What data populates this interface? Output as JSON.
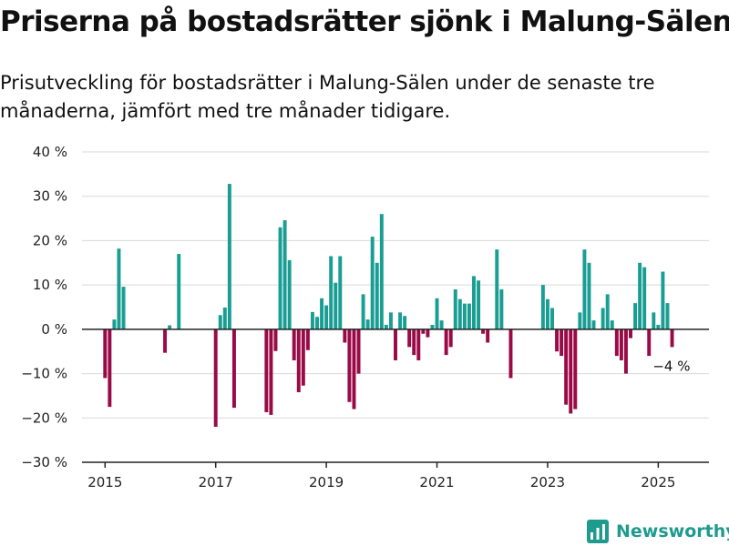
{
  "title": "Priserna på bostadsrätter sjönk i Malung-Sälen",
  "subtitle": "Prisutveckling för bostadsrätter i Malung-Sälen under de senaste tre månaderna, jämfört med tre månader tidigare.",
  "brand": "Newsworthy",
  "colors": {
    "positive": "#1a9e93",
    "negative": "#990a47",
    "grid": "#d9d9d9",
    "axis": "#222222",
    "brand": "#1f9a8e"
  },
  "chart_data": {
    "type": "bar",
    "x_unit": "month",
    "ylim": [
      -30,
      40
    ],
    "yticks": [
      -30,
      -20,
      -10,
      0,
      10,
      20,
      30,
      40
    ],
    "ytick_labels": [
      "−30 %",
      "−20 %",
      "−10 %",
      "0 %",
      "10 %",
      "20 %",
      "30 %",
      "40 %"
    ],
    "xticks": [
      "2015",
      "2017",
      "2019",
      "2021",
      "2023",
      "2025"
    ],
    "xlim": [
      "2014-08",
      "2025-12"
    ],
    "grid": true,
    "annotation": {
      "text": "−4 %",
      "month": "2025-04"
    },
    "series": [
      {
        "values": [
          [
            "2015-01",
            -11
          ],
          [
            "2015-02",
            -17.5
          ],
          [
            "2015-03",
            2.2
          ],
          [
            "2015-04",
            18.2
          ],
          [
            "2015-05",
            9.6
          ],
          [
            "2016-02",
            -5.3
          ],
          [
            "2016-03",
            0.9
          ],
          [
            "2016-05",
            17
          ],
          [
            "2017-01",
            -22
          ],
          [
            "2017-02",
            3.2
          ],
          [
            "2017-03",
            4.9
          ],
          [
            "2017-04",
            32.8
          ],
          [
            "2017-05",
            -17.7
          ],
          [
            "2017-12",
            -18.7
          ],
          [
            "2018-01",
            -19.3
          ],
          [
            "2018-02",
            -4.9
          ],
          [
            "2018-03",
            23
          ],
          [
            "2018-04",
            24.6
          ],
          [
            "2018-05",
            15.6
          ],
          [
            "2018-06",
            -7
          ],
          [
            "2018-07",
            -14.2
          ],
          [
            "2018-08",
            -12.7
          ],
          [
            "2018-09",
            -4.7
          ],
          [
            "2018-10",
            3.9
          ],
          [
            "2018-11",
            2.8
          ],
          [
            "2018-12",
            7
          ],
          [
            "2019-01",
            5.4
          ],
          [
            "2019-02",
            16.5
          ],
          [
            "2019-03",
            10.5
          ],
          [
            "2019-04",
            16.5
          ],
          [
            "2019-05",
            -3
          ],
          [
            "2019-06",
            -16.4
          ],
          [
            "2019-07",
            -18
          ],
          [
            "2019-08",
            -10
          ],
          [
            "2019-09",
            7.9
          ],
          [
            "2019-10",
            2.2
          ],
          [
            "2019-11",
            20.9
          ],
          [
            "2019-12",
            15
          ],
          [
            "2020-01",
            26
          ],
          [
            "2020-02",
            1
          ],
          [
            "2020-03",
            3.8
          ],
          [
            "2020-04",
            -7
          ],
          [
            "2020-05",
            3.8
          ],
          [
            "2020-06",
            3
          ],
          [
            "2020-07",
            -4
          ],
          [
            "2020-08",
            -5.8
          ],
          [
            "2020-09",
            -7
          ],
          [
            "2020-10",
            -1
          ],
          [
            "2020-11",
            -1.8
          ],
          [
            "2020-12",
            1
          ],
          [
            "2021-01",
            7
          ],
          [
            "2021-02",
            2
          ],
          [
            "2021-03",
            -5.8
          ],
          [
            "2021-04",
            -4
          ],
          [
            "2021-05",
            9
          ],
          [
            "2021-06",
            6.8
          ],
          [
            "2021-07",
            5.8
          ],
          [
            "2021-08",
            5.8
          ],
          [
            "2021-09",
            12
          ],
          [
            "2021-10",
            11
          ],
          [
            "2021-11",
            -1
          ],
          [
            "2021-12",
            -3
          ],
          [
            "2022-02",
            18
          ],
          [
            "2022-03",
            9
          ],
          [
            "2022-05",
            -11
          ],
          [
            "2022-12",
            10
          ],
          [
            "2023-01",
            6.8
          ],
          [
            "2023-02",
            4.8
          ],
          [
            "2023-03",
            -5
          ],
          [
            "2023-04",
            -6
          ],
          [
            "2023-05",
            -17
          ],
          [
            "2023-06",
            -19
          ],
          [
            "2023-07",
            -18
          ],
          [
            "2023-08",
            3.8
          ],
          [
            "2023-09",
            18
          ],
          [
            "2023-10",
            15
          ],
          [
            "2023-11",
            2
          ],
          [
            "2024-01",
            4.8
          ],
          [
            "2024-02",
            7.9
          ],
          [
            "2024-03",
            2
          ],
          [
            "2024-04",
            -6
          ],
          [
            "2024-05",
            -7
          ],
          [
            "2024-06",
            -10
          ],
          [
            "2024-07",
            -2
          ],
          [
            "2024-08",
            5.9
          ],
          [
            "2024-09",
            15
          ],
          [
            "2024-10",
            14
          ],
          [
            "2024-11",
            -6
          ],
          [
            "2024-12",
            3.8
          ],
          [
            "2025-01",
            1
          ],
          [
            "2025-02",
            13
          ],
          [
            "2025-03",
            5.9
          ],
          [
            "2025-04",
            -4
          ]
        ]
      }
    ]
  }
}
